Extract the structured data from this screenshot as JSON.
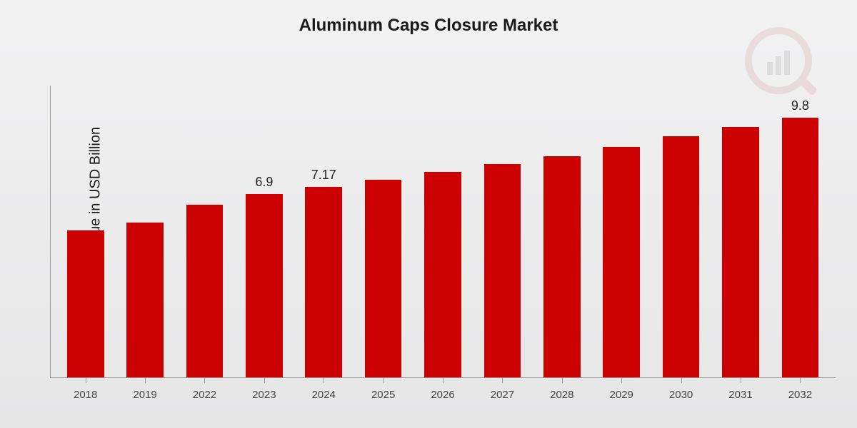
{
  "chart": {
    "type": "bar",
    "title": "Aluminum Caps Closure Market",
    "title_fontsize": 24,
    "ylabel": "Market Value in USD Billion",
    "ylabel_fontsize": 20,
    "xlabel_fontsize": 15,
    "background_gradient": [
      "#f2f2f3",
      "#e6e6e7"
    ],
    "bar_color": "#cc0000",
    "axis_color": "#999999",
    "text_color": "#1a1a1a",
    "ylim": [
      0,
      11
    ],
    "bar_width_ratio": 0.62,
    "categories": [
      "2018",
      "2019",
      "2022",
      "2023",
      "2024",
      "2025",
      "2026",
      "2027",
      "2028",
      "2029",
      "2030",
      "2031",
      "2032"
    ],
    "values": [
      5.55,
      5.85,
      6.5,
      6.9,
      7.17,
      7.45,
      7.75,
      8.05,
      8.35,
      8.7,
      9.1,
      9.45,
      9.8
    ],
    "value_labels": {
      "3": "6.9",
      "4": "7.17",
      "12": "9.8"
    },
    "value_label_fontsize": 18,
    "watermark": {
      "present": true,
      "opacity": 0.1,
      "color_primary": "#b02a2a",
      "color_secondary": "#3a3a3a"
    }
  }
}
